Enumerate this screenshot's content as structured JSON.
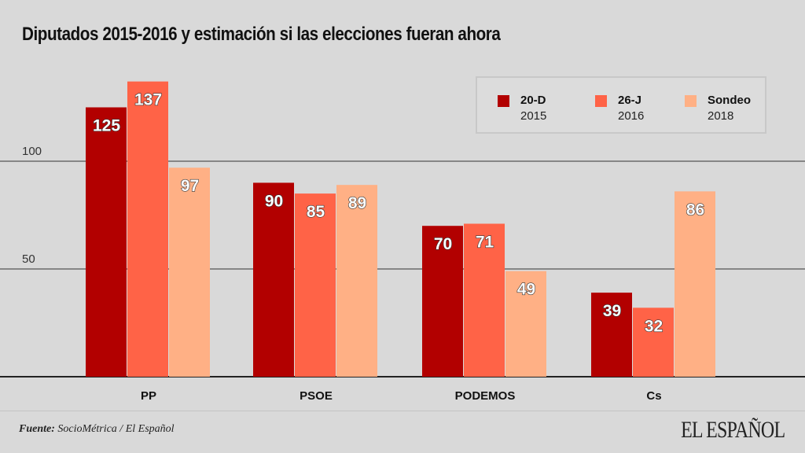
{
  "title": "Diputados 2015-2016 y estimación si las elecciones fueran ahora",
  "legend": [
    {
      "name": "20-D",
      "year": "2015",
      "color": "#b20000"
    },
    {
      "name": "26-J",
      "year": "2016",
      "color": "#ff6347"
    },
    {
      "name": "Sondeo",
      "year": "2018",
      "color": "#ffb085"
    }
  ],
  "footer": {
    "source_label": "Fuente:",
    "source_text": " SocioMétrica / El Español",
    "logo": "EL ESPAÑOL"
  },
  "chart_data": {
    "type": "bar",
    "title": "Diputados 2015-2016 y estimación si las elecciones fueran ahora",
    "categories": [
      "PP",
      "PSOE",
      "PODEMOS",
      "Cs"
    ],
    "series": [
      {
        "name": "20-D 2015",
        "values": [
          125,
          90,
          70,
          39
        ],
        "color": "#b20000"
      },
      {
        "name": "26-J 2016",
        "values": [
          137,
          85,
          71,
          32
        ],
        "color": "#ff6347"
      },
      {
        "name": "Sondeo 2018",
        "values": [
          97,
          89,
          49,
          86
        ],
        "color": "#ffb085"
      }
    ],
    "yticks": [
      50,
      100
    ],
    "ylim": [
      0,
      150
    ],
    "grid": true,
    "legend_position": "top-right"
  }
}
